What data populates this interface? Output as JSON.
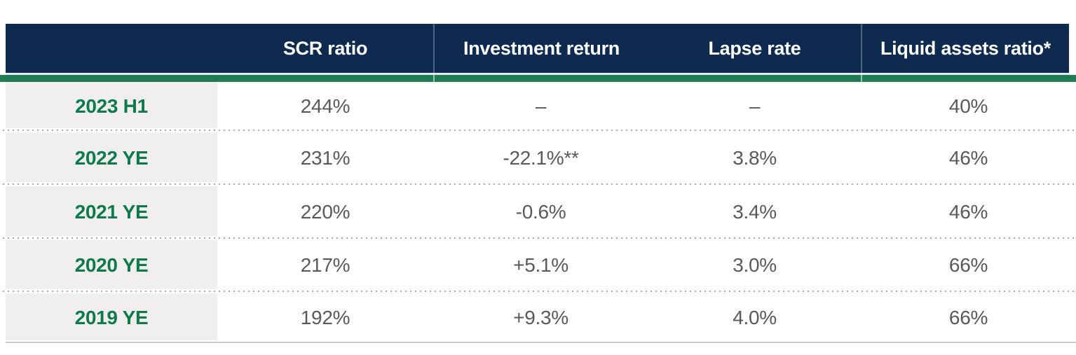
{
  "table": {
    "columns": [
      "",
      "SCR ratio",
      "Investment return",
      "Lapse rate",
      "Liquid assets ratio*"
    ],
    "rows": [
      {
        "label": "2023 H1",
        "values": [
          "244%",
          "–",
          "–",
          "40%"
        ]
      },
      {
        "label": "2022 YE",
        "values": [
          "231%",
          "-22.1%**",
          "3.8%",
          "46%"
        ]
      },
      {
        "label": "2021 YE",
        "values": [
          "220%",
          "-0.6%",
          "3.4%",
          "46%"
        ]
      },
      {
        "label": "2020 YE",
        "values": [
          "217%",
          "+5.1%",
          "3.0%",
          "66%"
        ]
      },
      {
        "label": "2019 YE",
        "values": [
          "192%",
          "+9.3%",
          "4.0%",
          "66%"
        ]
      }
    ]
  },
  "colors": {
    "header_bg": "#0e2a4e",
    "header_text": "#ffffff",
    "accent_bar": "#1e7b55",
    "row_label_text": "#0d7a4e",
    "row_label_bg": "#f0efee",
    "data_text": "#58595a",
    "dotted_separator": "#ababab",
    "bottom_border": "#cccccc"
  },
  "chart_data": {
    "type": "table",
    "columns": [
      "SCR ratio",
      "Investment return",
      "Lapse rate",
      "Liquid assets ratio*"
    ],
    "row_labels": [
      "2023 H1",
      "2022 YE",
      "2021 YE",
      "2020 YE",
      "2019 YE"
    ],
    "cells": [
      [
        "244%",
        "–",
        "–",
        "40%"
      ],
      [
        "231%",
        "-22.1%**",
        "3.8%",
        "46%"
      ],
      [
        "220%",
        "-0.6%",
        "3.4%",
        "46%"
      ],
      [
        "217%",
        "+5.1%",
        "3.0%",
        "66%"
      ],
      [
        "192%",
        "+9.3%",
        "4.0%",
        "66%"
      ]
    ],
    "notes": [
      "* asterisk footnote marker on Liquid assets ratio column header",
      "** double-asterisk marker on 2022 YE investment return value"
    ]
  }
}
